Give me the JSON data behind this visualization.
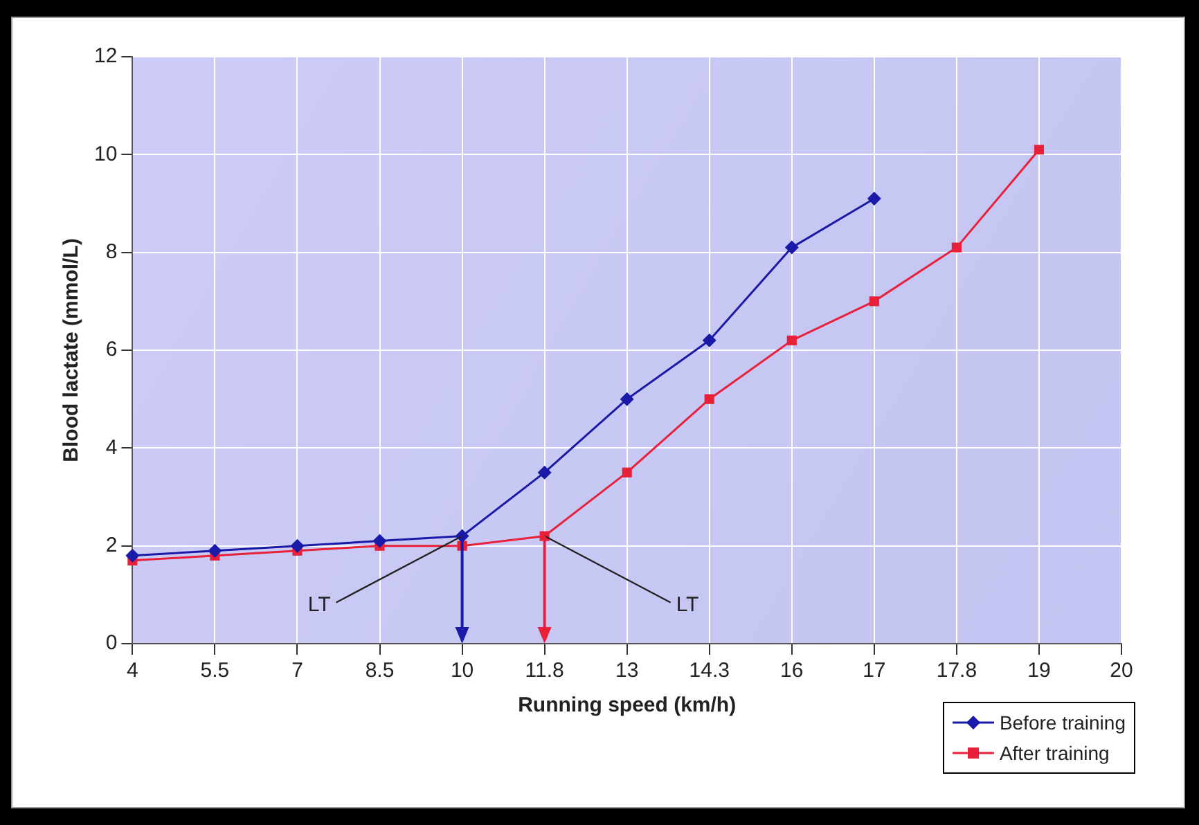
{
  "chart_data": {
    "type": "line",
    "xlabel": "Running speed (km/h)",
    "ylabel": "Blood lactate (mmol/L)",
    "categories": [
      "4",
      "5.5",
      "7",
      "8.5",
      "10",
      "11.8",
      "13",
      "14.3",
      "16",
      "17",
      "17.8",
      "19",
      "20"
    ],
    "series": [
      {
        "name": "Before training",
        "color": "#1a1aa8",
        "marker": "diamond",
        "values": [
          1.8,
          1.9,
          2.0,
          2.1,
          2.2,
          3.5,
          5.0,
          6.2,
          8.1,
          9.1,
          null,
          null,
          null
        ]
      },
      {
        "name": "After training",
        "color": "#e8203a",
        "marker": "square",
        "values": [
          1.7,
          1.8,
          1.9,
          2.0,
          2.0,
          2.2,
          3.5,
          5.0,
          6.2,
          7.0,
          8.1,
          10.1,
          null
        ]
      }
    ],
    "ylim": [
      0,
      12
    ],
    "yticks": [
      0,
      2,
      4,
      6,
      8,
      10,
      12
    ],
    "grid": true,
    "legend": "bottom right",
    "line_style": "solid",
    "annotations": [
      {
        "text": "LT",
        "x": "10",
        "y": 2.2
      },
      {
        "text": "LT",
        "x": "11.8",
        "y": 2.2
      }
    ]
  }
}
